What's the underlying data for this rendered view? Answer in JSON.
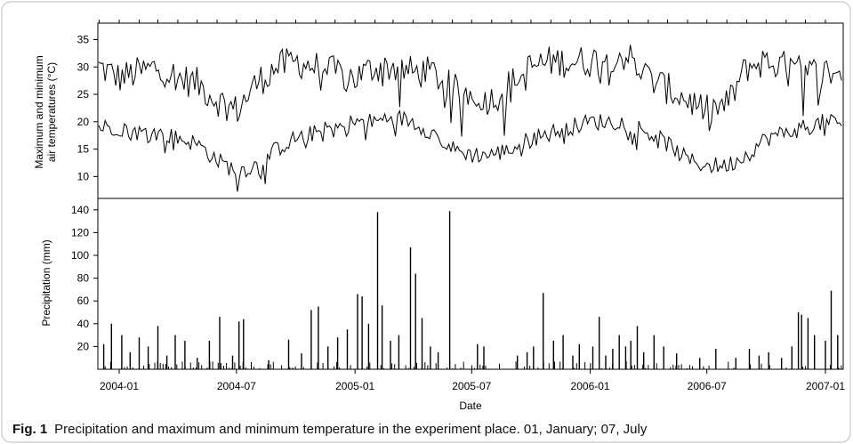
{
  "figure": {
    "caption_label": "Fig. 1",
    "caption_text": "Precipitation and maximum and minimum temperature in the experiment place. 01, January; 07, July"
  },
  "chart_data": [
    {
      "type": "line",
      "panel": "top",
      "title": "",
      "ylabel_line1": "Maximum and minimum",
      "ylabel_line2": "air temperatures (°C)",
      "xlabel": "",
      "ylim": [
        6,
        38
      ],
      "yticks": [
        "10",
        "15",
        "20",
        "25",
        "30",
        "35"
      ],
      "grid": false,
      "x": [
        "2003-11",
        "2003-12",
        "2004-01",
        "2004-02",
        "2004-03",
        "2004-04",
        "2004-05",
        "2004-06",
        "2004-07",
        "2004-08",
        "2004-09",
        "2004-10",
        "2004-11",
        "2004-12",
        "2005-01",
        "2005-02",
        "2005-03",
        "2005-04",
        "2005-05",
        "2005-06",
        "2005-07",
        "2005-08",
        "2005-09",
        "2005-10",
        "2005-11",
        "2005-12",
        "2006-01",
        "2006-02",
        "2006-03",
        "2006-04",
        "2006-05",
        "2006-06",
        "2006-07",
        "2006-08",
        "2006-09",
        "2006-10",
        "2006-11",
        "2006-12",
        "2007-01",
        "2007-02"
      ],
      "series": [
        {
          "values": [
            29,
            30,
            28,
            29,
            30,
            28,
            27,
            24,
            22,
            27,
            30,
            31,
            30,
            29,
            28,
            30,
            30,
            29,
            29,
            26,
            25,
            24,
            27,
            30,
            31,
            31,
            31,
            32,
            32,
            28,
            26,
            24,
            22,
            23,
            30,
            31,
            30,
            29,
            29,
            29
          ]
        },
        {
          "values": [
            20,
            19,
            19,
            18,
            18,
            17,
            16,
            13,
            11,
            12,
            15,
            17,
            18,
            19,
            20,
            20,
            21,
            20,
            18,
            15,
            14,
            14,
            15,
            17,
            18,
            19,
            20,
            20,
            20,
            18,
            16,
            13,
            12,
            12,
            14,
            17,
            18,
            19,
            20,
            20
          ]
        }
      ]
    },
    {
      "type": "bar",
      "panel": "bottom",
      "title": "",
      "ylabel": "Precipitation (mm)",
      "xlabel": "Date",
      "ylim": [
        0,
        150
      ],
      "yticks": [
        "20",
        "40",
        "60",
        "80",
        "100",
        "120",
        "140"
      ],
      "grid": false,
      "xticks": [
        {
          "date": "2004-01",
          "label": "2004-01"
        },
        {
          "date": "2004-07",
          "label": "2004-07"
        },
        {
          "date": "2005-01",
          "label": "2005-01"
        },
        {
          "date": "2005-07",
          "label": "2005-07"
        },
        {
          "date": "2006-01",
          "label": "2006-01"
        },
        {
          "date": "2006-07",
          "label": "2006-07"
        },
        {
          "date": "2007-01",
          "label": "2007-01"
        }
      ],
      "events": [
        {
          "date": "2003-11-10",
          "value": 12
        },
        {
          "date": "2003-11-25",
          "value": 35
        },
        {
          "date": "2003-12-08",
          "value": 22
        },
        {
          "date": "2003-12-20",
          "value": 40
        },
        {
          "date": "2004-01-05",
          "value": 30
        },
        {
          "date": "2004-01-18",
          "value": 15
        },
        {
          "date": "2004-02-01",
          "value": 28
        },
        {
          "date": "2004-02-15",
          "value": 20
        },
        {
          "date": "2004-03-01",
          "value": 38
        },
        {
          "date": "2004-03-15",
          "value": 12
        },
        {
          "date": "2004-03-28",
          "value": 30
        },
        {
          "date": "2004-04-12",
          "value": 25
        },
        {
          "date": "2004-05-01",
          "value": 10
        },
        {
          "date": "2004-05-20",
          "value": 25
        },
        {
          "date": "2004-06-05",
          "value": 46
        },
        {
          "date": "2004-06-25",
          "value": 12
        },
        {
          "date": "2004-07-05",
          "value": 42
        },
        {
          "date": "2004-07-12",
          "value": 44
        },
        {
          "date": "2004-08-20",
          "value": 8
        },
        {
          "date": "2004-09-20",
          "value": 26
        },
        {
          "date": "2004-10-10",
          "value": 14
        },
        {
          "date": "2004-10-25",
          "value": 52
        },
        {
          "date": "2004-11-05",
          "value": 55
        },
        {
          "date": "2004-11-20",
          "value": 20
        },
        {
          "date": "2004-12-05",
          "value": 28
        },
        {
          "date": "2004-12-20",
          "value": 35
        },
        {
          "date": "2005-01-05",
          "value": 66
        },
        {
          "date": "2005-01-12",
          "value": 64
        },
        {
          "date": "2005-01-22",
          "value": 40
        },
        {
          "date": "2005-02-05",
          "value": 138
        },
        {
          "date": "2005-02-12",
          "value": 56
        },
        {
          "date": "2005-02-25",
          "value": 25
        },
        {
          "date": "2005-03-10",
          "value": 30
        },
        {
          "date": "2005-03-28",
          "value": 107
        },
        {
          "date": "2005-04-05",
          "value": 84
        },
        {
          "date": "2005-04-15",
          "value": 45
        },
        {
          "date": "2005-04-28",
          "value": 20
        },
        {
          "date": "2005-05-10",
          "value": 15
        },
        {
          "date": "2005-05-28",
          "value": 139
        },
        {
          "date": "2005-07-10",
          "value": 22
        },
        {
          "date": "2005-07-20",
          "value": 20
        },
        {
          "date": "2005-09-10",
          "value": 12
        },
        {
          "date": "2005-09-25",
          "value": 15
        },
        {
          "date": "2005-10-05",
          "value": 20
        },
        {
          "date": "2005-10-20",
          "value": 67
        },
        {
          "date": "2005-11-05",
          "value": 25
        },
        {
          "date": "2005-11-20",
          "value": 30
        },
        {
          "date": "2005-12-05",
          "value": 12
        },
        {
          "date": "2005-12-15",
          "value": 22
        },
        {
          "date": "2006-01-05",
          "value": 20
        },
        {
          "date": "2006-01-15",
          "value": 46
        },
        {
          "date": "2006-01-25",
          "value": 12
        },
        {
          "date": "2006-02-05",
          "value": 18
        },
        {
          "date": "2006-02-15",
          "value": 30
        },
        {
          "date": "2006-02-25",
          "value": 20
        },
        {
          "date": "2006-03-05",
          "value": 25
        },
        {
          "date": "2006-03-15",
          "value": 38
        },
        {
          "date": "2006-03-25",
          "value": 15
        },
        {
          "date": "2006-04-10",
          "value": 30
        },
        {
          "date": "2006-04-25",
          "value": 20
        },
        {
          "date": "2006-05-15",
          "value": 14
        },
        {
          "date": "2006-06-20",
          "value": 10
        },
        {
          "date": "2006-07-15",
          "value": 18
        },
        {
          "date": "2006-08-15",
          "value": 10
        },
        {
          "date": "2006-09-05",
          "value": 18
        },
        {
          "date": "2006-09-20",
          "value": 12
        },
        {
          "date": "2006-10-05",
          "value": 15
        },
        {
          "date": "2006-10-25",
          "value": 10
        },
        {
          "date": "2006-11-10",
          "value": 20
        },
        {
          "date": "2006-11-20",
          "value": 50
        },
        {
          "date": "2006-11-25",
          "value": 48
        },
        {
          "date": "2006-12-05",
          "value": 45
        },
        {
          "date": "2006-12-15",
          "value": 30
        },
        {
          "date": "2007-01-01",
          "value": 25
        },
        {
          "date": "2007-01-10",
          "value": 69
        },
        {
          "date": "2007-01-20",
          "value": 30
        }
      ]
    }
  ]
}
